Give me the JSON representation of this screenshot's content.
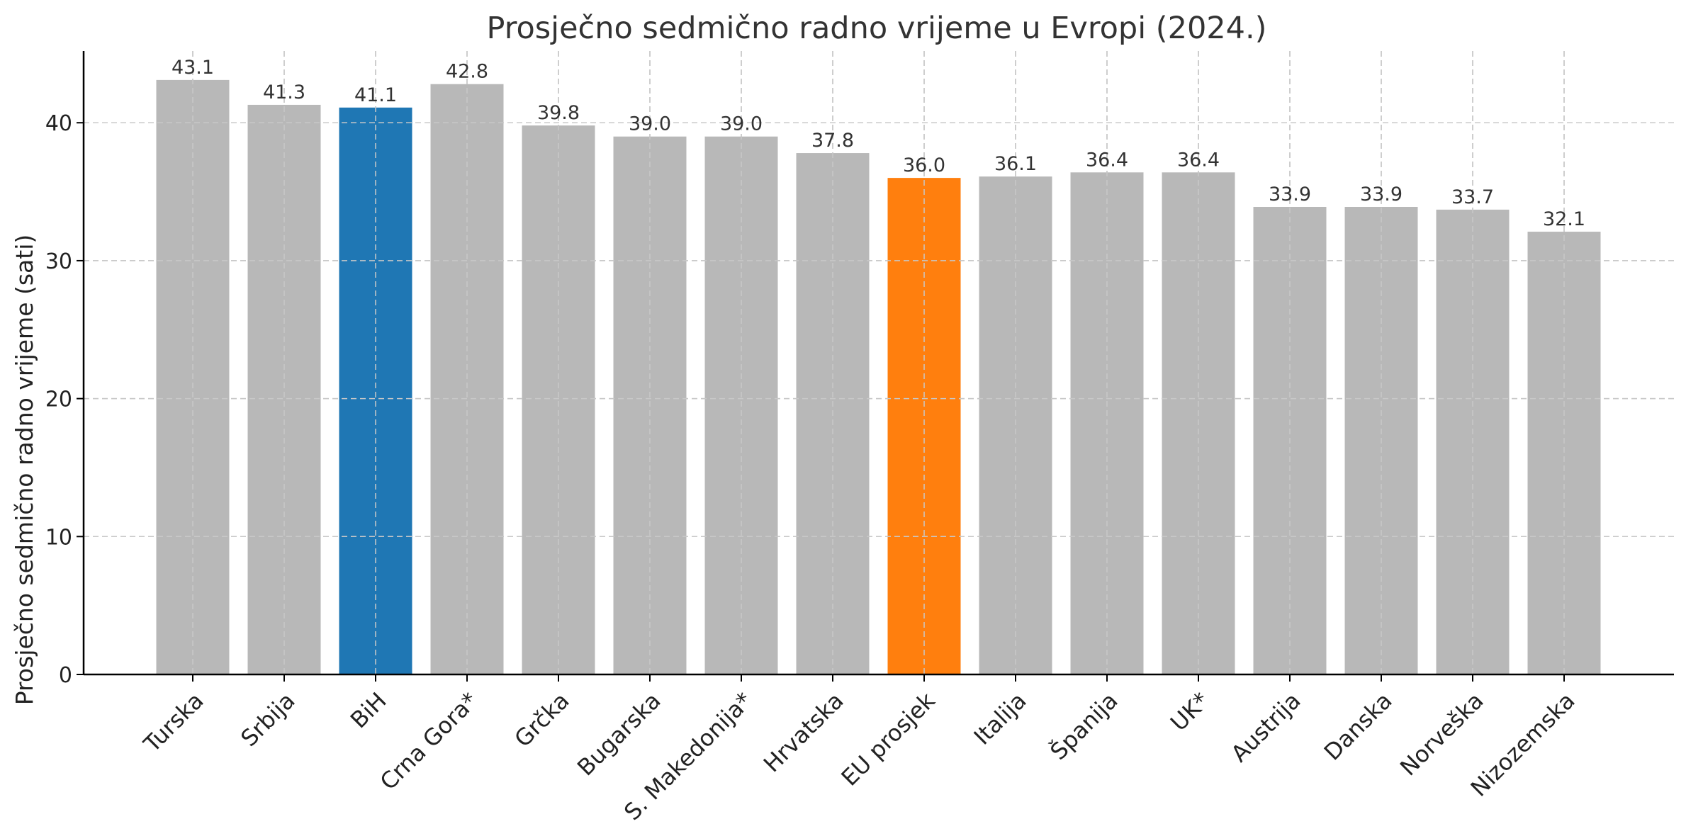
{
  "chart_data": {
    "type": "bar",
    "title": "Prosječno sedmično radno vrijeme u Evropi (2024.)",
    "xlabel": "",
    "ylabel": "Prosječno sedmično radno vrijeme (sati)",
    "ylim": [
      0,
      45.2
    ],
    "yticks": [
      0,
      10,
      20,
      30,
      40
    ],
    "grid": true,
    "categories": [
      "Turska",
      "Srbija",
      "BiH",
      "Crna Gora*",
      "Grčka",
      "Bugarska",
      "S. Makedonija*",
      "Hrvatska",
      "EU prosjek",
      "Italija",
      "Španija",
      "UK*",
      "Austrija",
      "Danska",
      "Norveška",
      "Nizozemska"
    ],
    "values": [
      43.1,
      41.3,
      41.1,
      42.8,
      39.8,
      39.0,
      39.0,
      37.8,
      36.0,
      36.1,
      36.4,
      36.4,
      33.9,
      33.9,
      33.7,
      32.1
    ],
    "value_labels": [
      "43.1",
      "41.3",
      "41.1",
      "42.8",
      "39.8",
      "39.0",
      "39.0",
      "37.8",
      "36.0",
      "36.1",
      "36.4",
      "36.4",
      "33.9",
      "33.9",
      "33.7",
      "32.1"
    ],
    "bar_colors": [
      "#b8b8b8",
      "#b8b8b8",
      "#1f77b4",
      "#b8b8b8",
      "#b8b8b8",
      "#b8b8b8",
      "#b8b8b8",
      "#b8b8b8",
      "#ff7f0e",
      "#b8b8b8",
      "#b8b8b8",
      "#b8b8b8",
      "#b8b8b8",
      "#b8b8b8",
      "#b8b8b8",
      "#b8b8b8"
    ]
  }
}
